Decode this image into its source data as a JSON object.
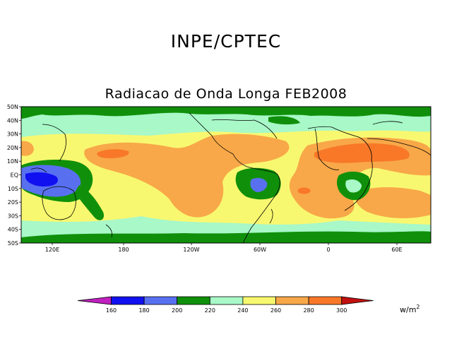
{
  "header": {
    "org": "INPE/CPTEC"
  },
  "map": {
    "title": "Radiacao de Onda Longa FEB2008",
    "lat_labels": [
      "50N",
      "40N",
      "30N",
      "20N",
      "10N",
      "EQ",
      "10S",
      "20S",
      "30S",
      "40S",
      "50S"
    ],
    "lon_labels": [
      "120E",
      "180",
      "120W",
      "60W",
      "0",
      "60E"
    ]
  },
  "legend": {
    "ticks": [
      "160",
      "180",
      "200",
      "220",
      "240",
      "260",
      "280",
      "300"
    ],
    "colors": [
      "#c020c0",
      "#1010f0",
      "#5870f0",
      "#10900a",
      "#a8f8c8",
      "#f8f870",
      "#f8a848",
      "#f87828",
      "#c01010"
    ],
    "units_base": "w/m",
    "units_exp": "2"
  },
  "colors": {
    "below_180": "#1010f0",
    "c180_200": "#5870f0",
    "c200_220": "#10900a",
    "c220_240": "#a8f8c8",
    "c240_260": "#f8f870",
    "c260_280": "#f8a848",
    "c280_300": "#f87828"
  }
}
